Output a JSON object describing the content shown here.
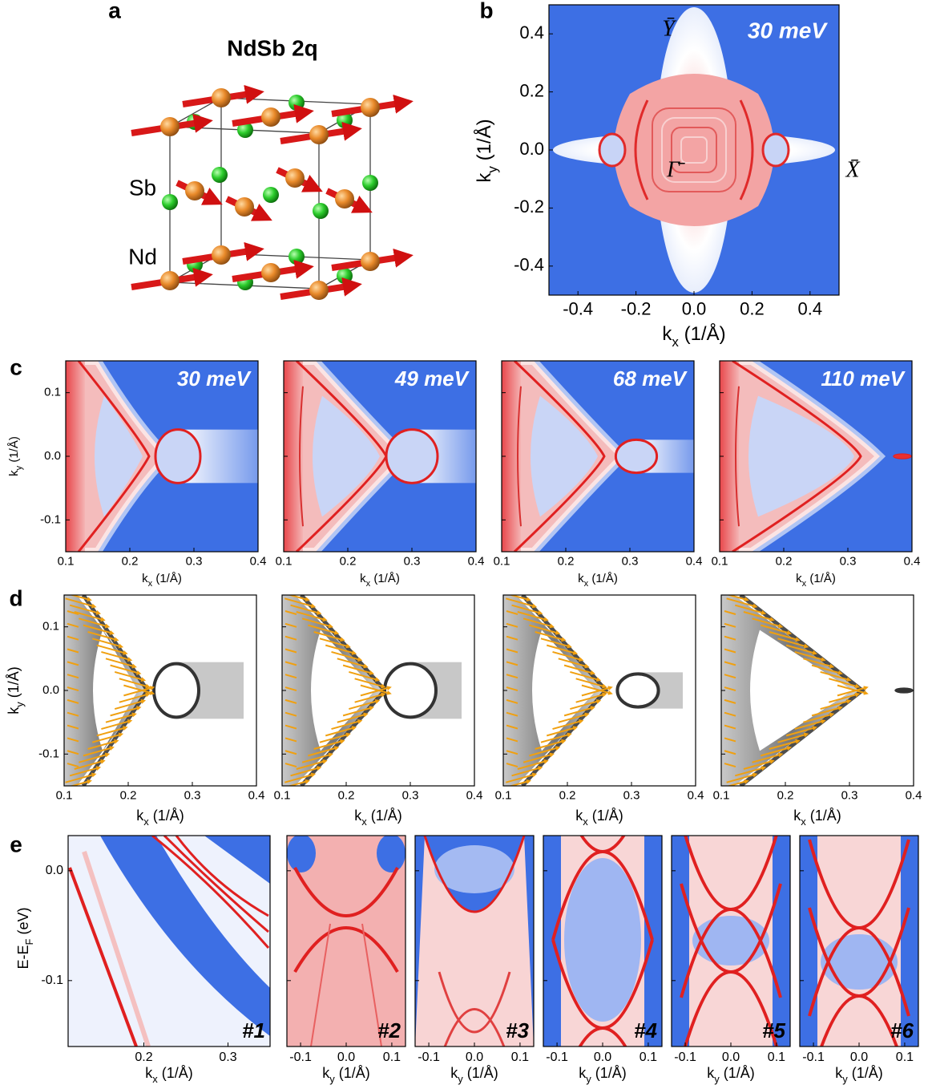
{
  "panel_a": {
    "label": "a",
    "title": "NdSb 2q",
    "atoms": [
      "Sb",
      "Nd"
    ]
  },
  "panel_b": {
    "label": "b",
    "energy": "30 meV",
    "points": [
      "Ȳ",
      "Γ̄",
      "X̄"
    ],
    "xlabel": {
      "main": "k",
      "sub": "x",
      "unit": " (1/Å)"
    },
    "ylabel": {
      "main": "k",
      "sub": "y",
      "unit": " (1/Å)"
    },
    "xlim": [
      -0.5,
      0.5
    ],
    "ylim": [
      -0.5,
      0.5
    ],
    "xticks": [
      -0.4,
      -0.2,
      {
        "value": 0,
        "label": "0.0"
      },
      0.2,
      0.4
    ],
    "yticks": [
      0.4,
      0.2,
      {
        "value": 0,
        "label": "0.0"
      },
      -0.2,
      -0.4
    ]
  },
  "panel_c": {
    "label": "c",
    "energies": [
      "30 meV",
      "49 meV",
      "68 meV",
      "110 meV"
    ],
    "xlabel": {
      "main": "k",
      "sub": "x",
      "unit": " (1/Å)"
    },
    "ylabel": {
      "main": "k",
      "sub": "y",
      "unit": " (1/Å)"
    },
    "xlim": [
      0.1,
      0.4
    ],
    "ylim": [
      -0.15,
      0.15
    ],
    "xticks": [
      0.1,
      0.2,
      0.3,
      0.4
    ],
    "yticks": [
      0.1,
      {
        "value": 0,
        "label": "0.0"
      },
      -0.1
    ]
  },
  "panel_d": {
    "label": "d",
    "xlabel": {
      "main": "k",
      "sub": "x",
      "unit": " (1/Å)"
    },
    "ylabel": {
      "main": "k",
      "sub": "y",
      "unit": " (1/Å)"
    },
    "xlim": [
      0.1,
      0.4
    ],
    "ylim": [
      -0.15,
      0.15
    ],
    "xticks": [
      0.1,
      0.2,
      0.3,
      0.4
    ],
    "yticks": [
      0.1,
      {
        "value": 0,
        "label": "0.0"
      },
      -0.1
    ]
  },
  "panel_e": {
    "label": "e",
    "ylabel": {
      "main": "E-E",
      "sub": "F",
      "unit": " (eV)"
    },
    "ylim": [
      -0.16,
      0.032
    ],
    "yticks": [
      {
        "value": 0,
        "label": "0.0"
      },
      -0.1
    ],
    "cuts": [
      "#1",
      "#2",
      "#3",
      "#4",
      "#5",
      "#6"
    ],
    "first": {
      "xlabel": {
        "main": "k",
        "sub": "x",
        "unit": " (1/Å)"
      },
      "xlim": [
        0.11,
        0.35
      ],
      "xticks": [
        0.2,
        0.3
      ]
    },
    "others": {
      "xlabel": {
        "main": "k",
        "sub": "y",
        "unit": " (1/Å)"
      },
      "xlim": [
        -0.13,
        0.13
      ],
      "xticks": [
        -0.1,
        {
          "value": 0,
          "label": "0.0"
        },
        0.1
      ]
    }
  }
}
